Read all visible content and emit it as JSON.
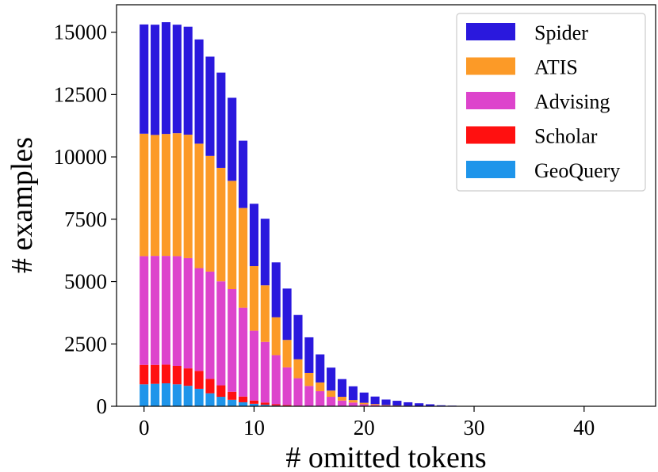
{
  "chart_data": {
    "type": "bar",
    "stacked": true,
    "xlabel": "# omitted tokens",
    "ylabel": "# examples",
    "xlim": [
      -2.5,
      46.5
    ],
    "ylim": [
      0,
      16100
    ],
    "xticks": [
      0,
      10,
      20,
      30,
      40
    ],
    "yticks": [
      0,
      2500,
      5000,
      7500,
      10000,
      12500,
      15000
    ],
    "legend_position": "top-right",
    "x": [
      0,
      1,
      2,
      3,
      4,
      5,
      6,
      7,
      8,
      9,
      10,
      11,
      12,
      13,
      14,
      15,
      16,
      17,
      18,
      19,
      20,
      21,
      22,
      23,
      24,
      25,
      26,
      27,
      28,
      29,
      30,
      31,
      32,
      33,
      34,
      35,
      36,
      37,
      38,
      39,
      40,
      41,
      42,
      43,
      44,
      45
    ],
    "series": [
      {
        "name": "GeoQuery",
        "color": "#1f95ea",
        "values": [
          880,
          900,
          920,
          880,
          820,
          700,
          520,
          380,
          260,
          160,
          100,
          60,
          30,
          20,
          10,
          5,
          0,
          0,
          0,
          0,
          0,
          0,
          0,
          0,
          0,
          0,
          0,
          0,
          0,
          0,
          0,
          0,
          0,
          0,
          0,
          0,
          0,
          0,
          0,
          0,
          0,
          0,
          0,
          0,
          0,
          0
        ]
      },
      {
        "name": "Scholar",
        "color": "#ff1010",
        "values": [
          780,
          760,
          750,
          740,
          700,
          720,
          580,
          460,
          320,
          230,
          130,
          90,
          50,
          30,
          15,
          10,
          5,
          0,
          0,
          0,
          0,
          0,
          0,
          0,
          0,
          0,
          0,
          0,
          0,
          0,
          0,
          0,
          0,
          0,
          0,
          0,
          0,
          0,
          0,
          0,
          0,
          0,
          0,
          0,
          0,
          0
        ]
      },
      {
        "name": "Advising",
        "color": "#dd44cc",
        "values": [
          4360,
          4370,
          4360,
          4400,
          4420,
          4120,
          4300,
          4170,
          4120,
          3560,
          2800,
          2430,
          1970,
          1510,
          1100,
          800,
          600,
          380,
          230,
          150,
          80,
          50,
          30,
          15,
          10,
          5,
          5,
          0,
          0,
          0,
          0,
          0,
          0,
          0,
          0,
          0,
          0,
          0,
          0,
          0,
          0,
          0,
          0,
          0,
          0,
          0
        ]
      },
      {
        "name": "ATIS",
        "color": "#fc9a27",
        "values": [
          4910,
          4850,
          4890,
          4930,
          4950,
          4990,
          4640,
          4550,
          4340,
          4000,
          2590,
          2270,
          1520,
          1100,
          760,
          520,
          350,
          250,
          150,
          100,
          60,
          40,
          20,
          15,
          10,
          5,
          5,
          0,
          0,
          0,
          0,
          0,
          0,
          0,
          0,
          0,
          0,
          0,
          0,
          0,
          0,
          0,
          0,
          0,
          0,
          0
        ]
      },
      {
        "name": "Spider",
        "color": "#2a18dd",
        "values": [
          4380,
          4420,
          4480,
          4350,
          4330,
          4180,
          3980,
          3820,
          3330,
          2700,
          2500,
          2670,
          2200,
          2060,
          1775,
          1430,
          1125,
          920,
          710,
          550,
          410,
          300,
          220,
          190,
          140,
          110,
          70,
          40,
          25,
          15,
          8,
          5,
          3,
          2,
          1,
          1,
          0,
          0,
          0,
          0,
          0,
          0,
          0,
          0,
          0,
          0
        ]
      }
    ],
    "legend_order": [
      "Spider",
      "ATIS",
      "Advising",
      "Scholar",
      "GeoQuery"
    ]
  }
}
